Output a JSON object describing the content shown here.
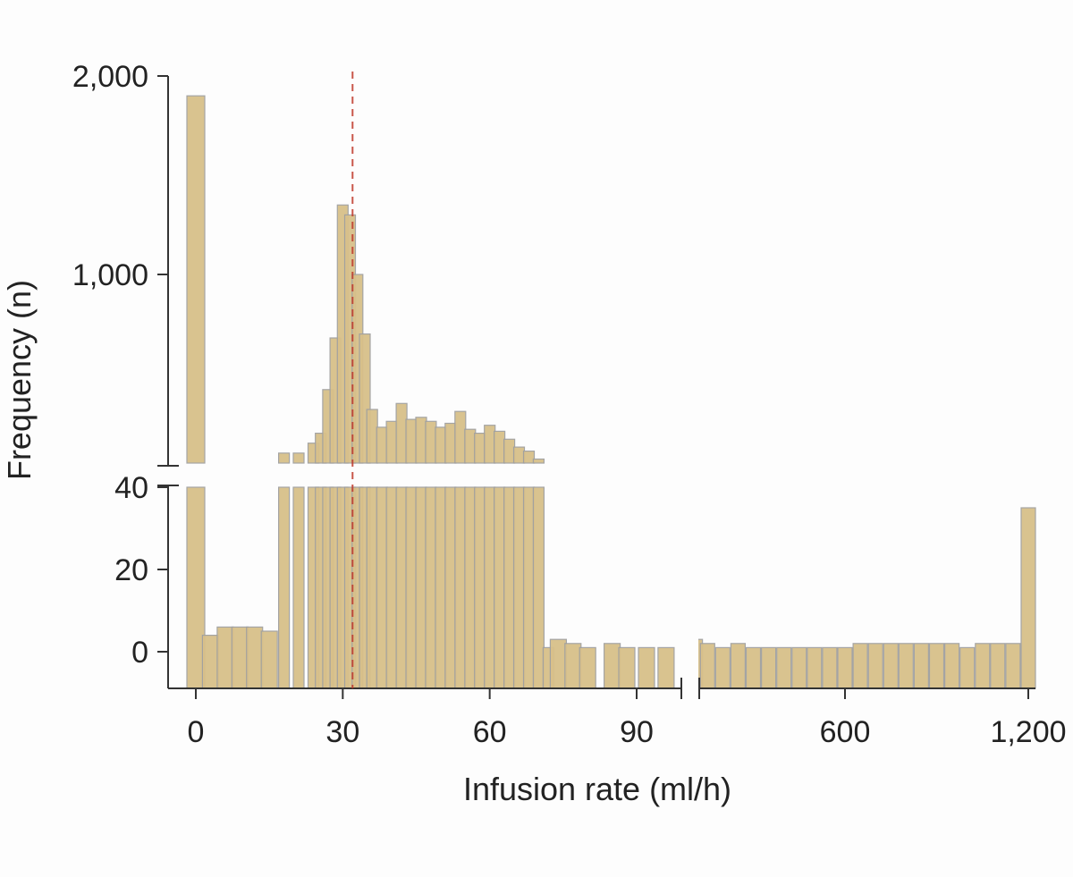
{
  "chart_data": {
    "type": "bar",
    "title": "",
    "xlabel": "Infusion rate (ml/h)",
    "ylabel": "Frequency (n)",
    "x_axis": {
      "segments": [
        {
          "range": [
            -1,
            98
          ],
          "ticks": [
            0,
            30,
            60,
            90
          ],
          "tick_labels": [
            "0",
            "30",
            "60",
            "90"
          ]
        },
        {
          "range": [
            100,
            1210
          ],
          "ticks": [
            600,
            1200
          ],
          "tick_labels": [
            "600",
            "1,200"
          ]
        }
      ],
      "axis_break": true
    },
    "y_axis": {
      "segments": [
        {
          "range": [
            -8,
            40
          ],
          "ticks": [
            0,
            20,
            40
          ],
          "tick_labels": [
            "0",
            "20",
            "40"
          ]
        },
        {
          "range": [
            40,
            2000
          ],
          "ticks": [
            1000,
            2000
          ],
          "tick_labels": [
            "1,000",
            "2,000"
          ]
        }
      ],
      "axis_break": true
    },
    "reference_line": {
      "x": 32,
      "style": "dashed",
      "color": "#c0392b"
    },
    "colors": {
      "bar": "#d8c08a",
      "bar_shadow": "#a0a0a0",
      "axis": "#333333",
      "text": "#222222"
    },
    "grid": false,
    "series": [
      {
        "values": [
          {
            "x": 0,
            "y": 1900
          },
          {
            "x": 3,
            "y": 4
          },
          {
            "x": 6,
            "y": 6
          },
          {
            "x": 9,
            "y": 6
          },
          {
            "x": 12,
            "y": 6
          },
          {
            "x": 15,
            "y": 5
          },
          {
            "x": 18,
            "y": 100
          },
          {
            "x": 21,
            "y": 100
          },
          {
            "x": 24,
            "y": 150
          },
          {
            "x": 25.5,
            "y": 200
          },
          {
            "x": 27,
            "y": 420
          },
          {
            "x": 28.5,
            "y": 680
          },
          {
            "x": 30,
            "y": 1350
          },
          {
            "x": 31.5,
            "y": 1300
          },
          {
            "x": 33,
            "y": 1000
          },
          {
            "x": 34.5,
            "y": 700
          },
          {
            "x": 36,
            "y": 320
          },
          {
            "x": 38,
            "y": 230
          },
          {
            "x": 40,
            "y": 260
          },
          {
            "x": 42,
            "y": 350
          },
          {
            "x": 44,
            "y": 270
          },
          {
            "x": 46,
            "y": 280
          },
          {
            "x": 48,
            "y": 260
          },
          {
            "x": 50,
            "y": 230
          },
          {
            "x": 52,
            "y": 250
          },
          {
            "x": 54,
            "y": 310
          },
          {
            "x": 56,
            "y": 220
          },
          {
            "x": 58,
            "y": 200
          },
          {
            "x": 60,
            "y": 240
          },
          {
            "x": 62,
            "y": 210
          },
          {
            "x": 64,
            "y": 170
          },
          {
            "x": 66,
            "y": 130
          },
          {
            "x": 68,
            "y": 110
          },
          {
            "x": 70,
            "y": 70
          },
          {
            "x": 72,
            "y": 1
          },
          {
            "x": 74,
            "y": 3
          },
          {
            "x": 77,
            "y": 2
          },
          {
            "x": 80,
            "y": 1
          },
          {
            "x": 85,
            "y": 2
          },
          {
            "x": 88,
            "y": 1
          },
          {
            "x": 92,
            "y": 1
          },
          {
            "x": 96,
            "y": 1
          },
          {
            "x": 110,
            "y": 3
          },
          {
            "x": 150,
            "y": 2
          },
          {
            "x": 200,
            "y": 1
          },
          {
            "x": 250,
            "y": 2
          },
          {
            "x": 300,
            "y": 1
          },
          {
            "x": 350,
            "y": 1
          },
          {
            "x": 400,
            "y": 1
          },
          {
            "x": 450,
            "y": 1
          },
          {
            "x": 500,
            "y": 1
          },
          {
            "x": 550,
            "y": 1
          },
          {
            "x": 600,
            "y": 1
          },
          {
            "x": 650,
            "y": 2
          },
          {
            "x": 700,
            "y": 2
          },
          {
            "x": 750,
            "y": 2
          },
          {
            "x": 800,
            "y": 2
          },
          {
            "x": 850,
            "y": 2
          },
          {
            "x": 900,
            "y": 2
          },
          {
            "x": 950,
            "y": 2
          },
          {
            "x": 1000,
            "y": 1
          },
          {
            "x": 1050,
            "y": 2
          },
          {
            "x": 1100,
            "y": 2
          },
          {
            "x": 1150,
            "y": 2
          },
          {
            "x": 1200,
            "y": 35
          }
        ]
      }
    ]
  }
}
